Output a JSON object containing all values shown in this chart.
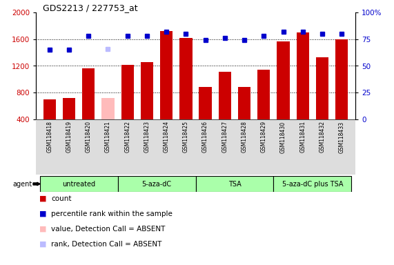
{
  "title": "GDS2213 / 227753_at",
  "samples": [
    "GSM118418",
    "GSM118419",
    "GSM118420",
    "GSM118421",
    "GSM118422",
    "GSM118423",
    "GSM118424",
    "GSM118425",
    "GSM118426",
    "GSM118427",
    "GSM118428",
    "GSM118429",
    "GSM118430",
    "GSM118431",
    "GSM118432",
    "GSM118433"
  ],
  "counts": [
    700,
    720,
    1160,
    720,
    1220,
    1260,
    1720,
    1620,
    880,
    1110,
    880,
    1140,
    1570,
    1700,
    1330,
    1600
  ],
  "absent_flags": [
    false,
    false,
    false,
    true,
    false,
    false,
    false,
    false,
    false,
    false,
    false,
    false,
    false,
    false,
    false,
    false
  ],
  "percentile_ranks": [
    65,
    65,
    78,
    66,
    78,
    78,
    82,
    80,
    74,
    76,
    74,
    78,
    82,
    82,
    80,
    80
  ],
  "rank_absent_flags": [
    false,
    false,
    false,
    true,
    false,
    false,
    false,
    false,
    false,
    false,
    false,
    false,
    false,
    false,
    false,
    false
  ],
  "groups": [
    {
      "label": "untreated",
      "start": 0,
      "end": 3
    },
    {
      "label": "5-aza-dC",
      "start": 4,
      "end": 7
    },
    {
      "label": "TSA",
      "start": 8,
      "end": 11
    },
    {
      "label": "5-aza-dC plus TSA",
      "start": 12,
      "end": 15
    }
  ],
  "group_color": "#aaffaa",
  "bar_color_normal": "#cc0000",
  "bar_color_absent": "#ffbbbb",
  "dot_color_normal": "#0000cc",
  "dot_color_absent": "#bbbbff",
  "ylim_left": [
    400,
    2000
  ],
  "ylim_right": [
    0,
    100
  ],
  "yticks_left": [
    400,
    800,
    1200,
    1600,
    2000
  ],
  "yticks_right": [
    0,
    25,
    50,
    75,
    100
  ],
  "bg_color": "#ffffff",
  "plot_bg": "#ffffff",
  "xtick_area_color": "#dddddd",
  "legend_items": [
    {
      "color": "#cc0000",
      "label": "count"
    },
    {
      "color": "#0000cc",
      "label": "percentile rank within the sample"
    },
    {
      "color": "#ffbbbb",
      "label": "value, Detection Call = ABSENT"
    },
    {
      "color": "#bbbbff",
      "label": "rank, Detection Call = ABSENT"
    }
  ]
}
